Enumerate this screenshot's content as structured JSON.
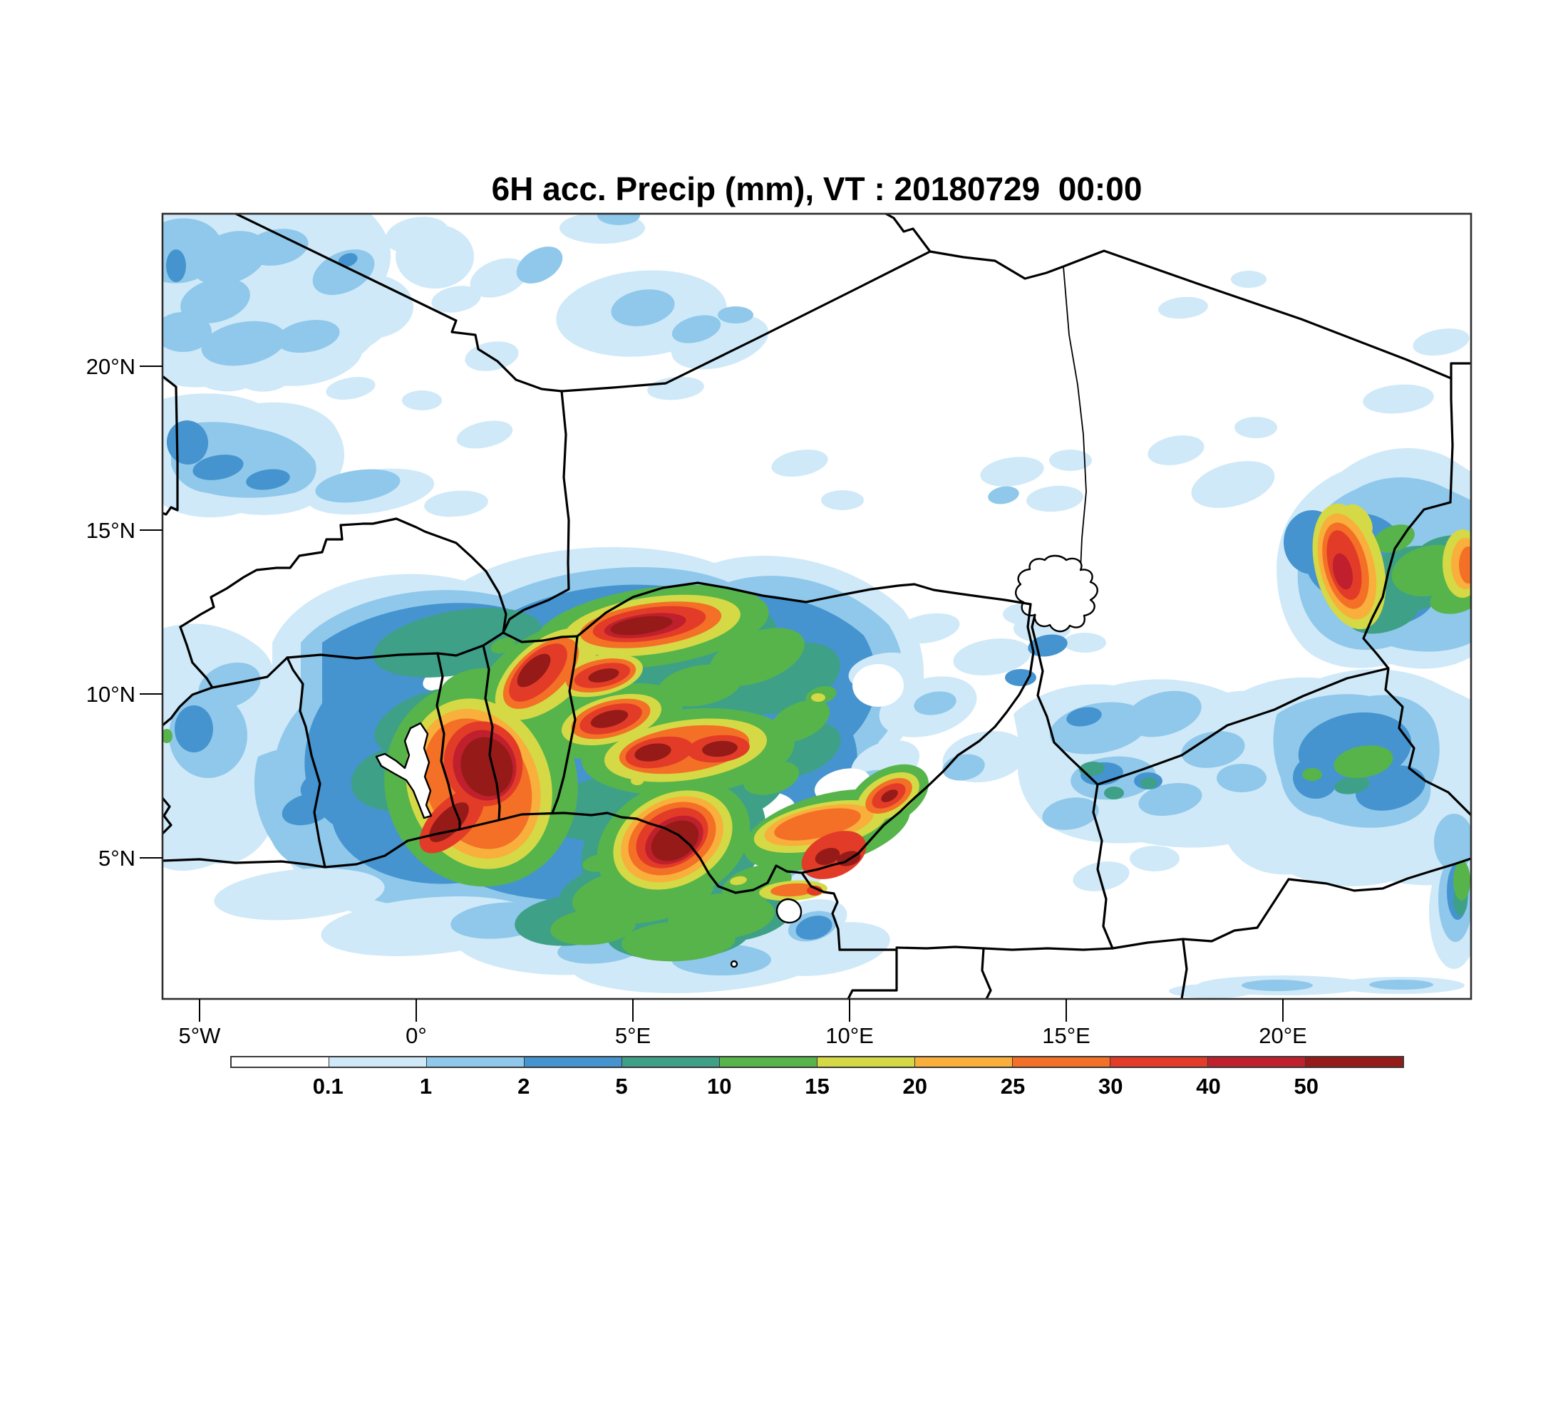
{
  "title": "6H acc. Precip (mm), VT : 20180729  00:00",
  "axes": {
    "lat_ticks": [
      {
        "label": "20°N",
        "deg": 20
      },
      {
        "label": "15°N",
        "deg": 15
      },
      {
        "label": "10°N",
        "deg": 10
      },
      {
        "label": "5°N",
        "deg": 5
      }
    ],
    "lon_ticks": [
      {
        "label": "5°W",
        "deg": -5
      },
      {
        "label": "0°",
        "deg": 0
      },
      {
        "label": "5°E",
        "deg": 5
      },
      {
        "label": "10°E",
        "deg": 10
      },
      {
        "label": "15°E",
        "deg": 15
      },
      {
        "label": "20°E",
        "deg": 20
      }
    ]
  },
  "colorbar": {
    "boundary_labels": [
      "0.1",
      "1",
      "2",
      "5",
      "10",
      "15",
      "20",
      "25",
      "30",
      "40",
      "50"
    ],
    "colors": [
      "#ffffff",
      "#cfe9f8",
      "#8fc8ea",
      "#4594cf",
      "#3fa088",
      "#56b44b",
      "#d4d945",
      "#f9af3c",
      "#f37026",
      "#e23c28",
      "#c0202d",
      "#961b18"
    ],
    "units": "mm"
  }
}
